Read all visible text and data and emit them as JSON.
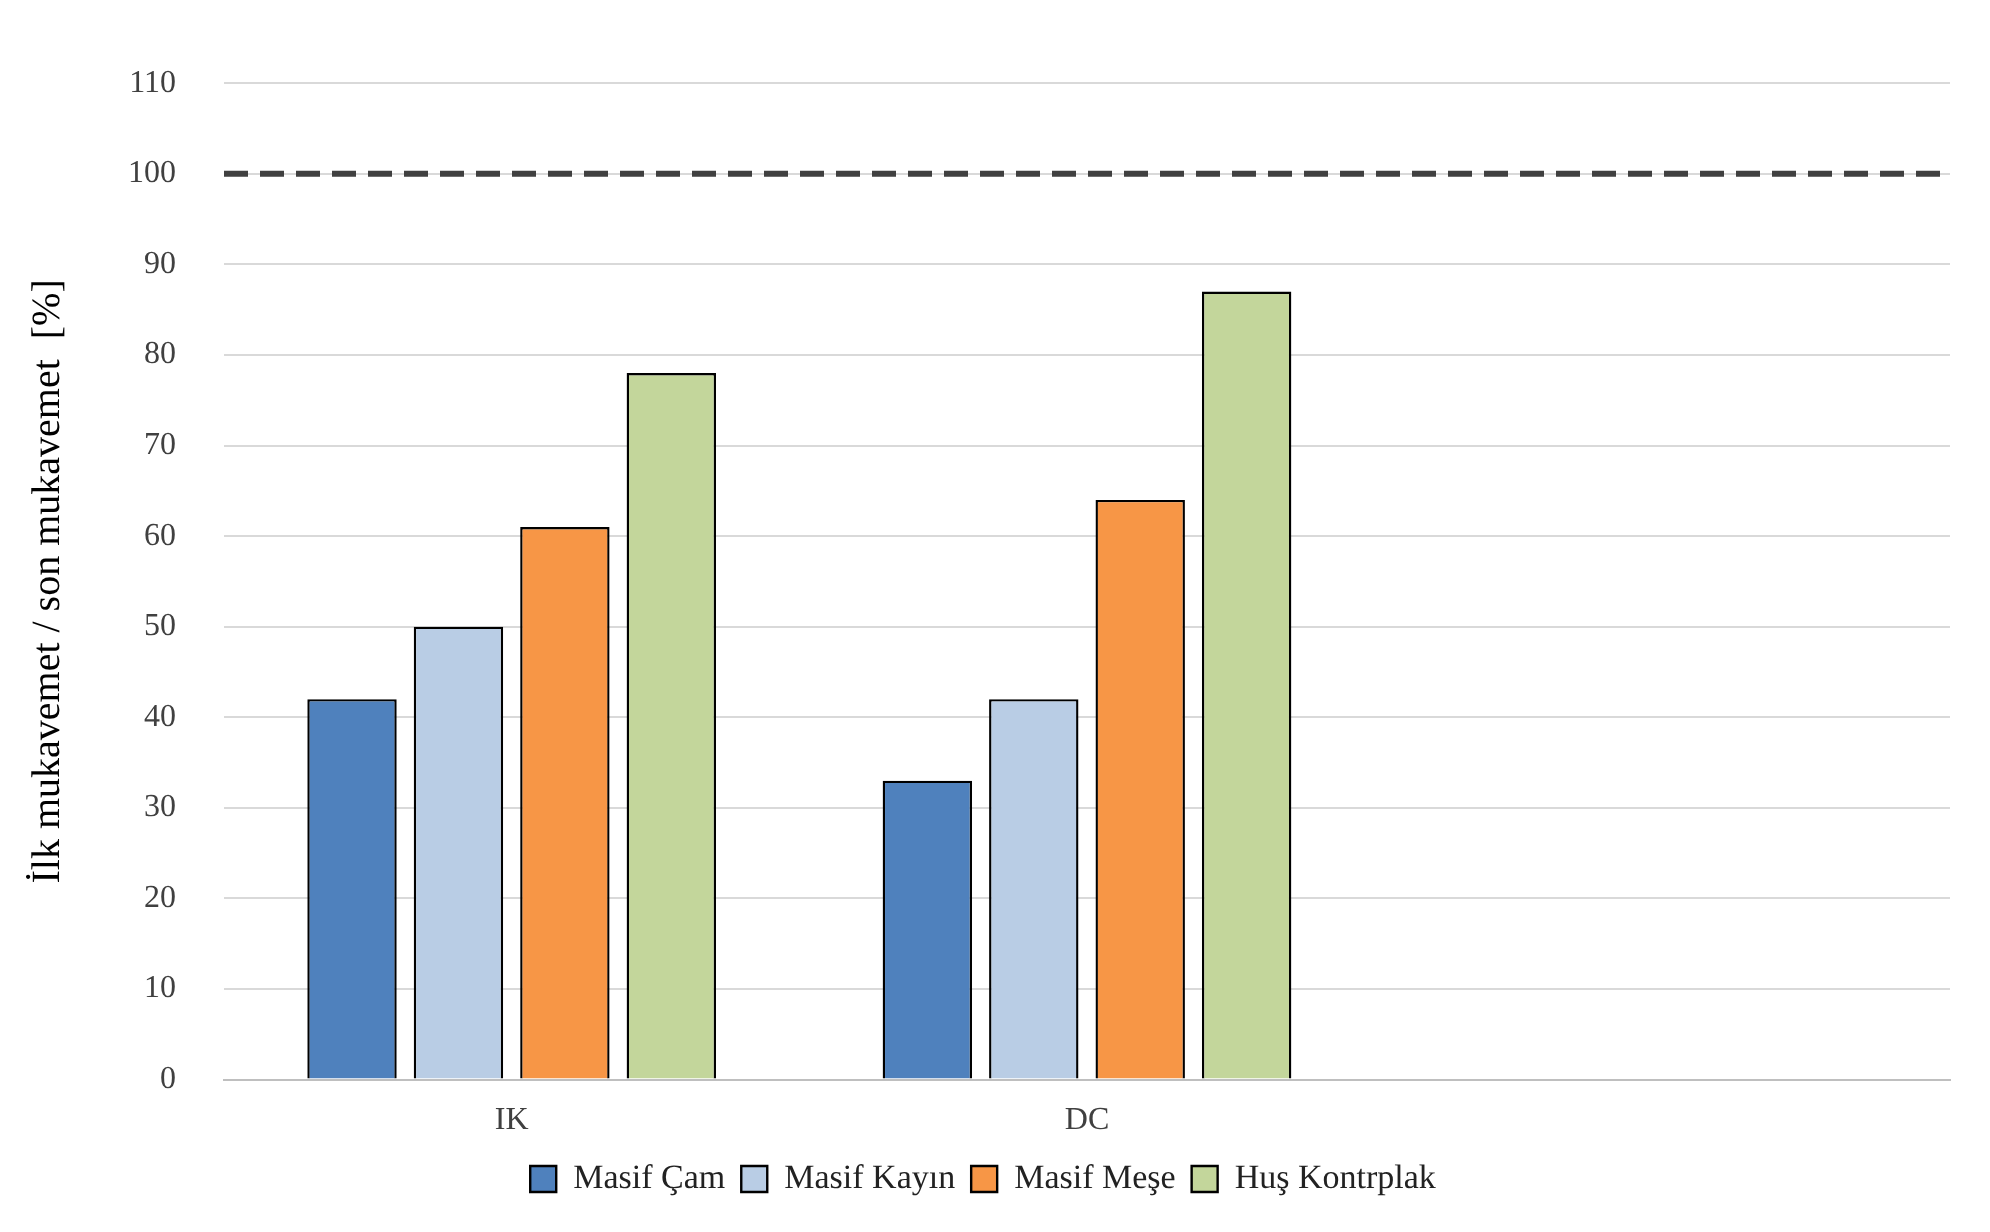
{
  "chart_data": {
    "type": "bar",
    "ylabel": "İlk mukavemet / son mukavemet  [%]",
    "categories": [
      "IK",
      "DC",
      null
    ],
    "series": [
      {
        "name": "Masif Çam",
        "color": "#4f81bd",
        "values": [
          42,
          33,
          null
        ]
      },
      {
        "name": "Masif Kayın",
        "color": "#b9cde5",
        "values": [
          50,
          42,
          null
        ]
      },
      {
        "name": "Masif Meşe",
        "color": "#f79646",
        "values": [
          61,
          64,
          null
        ]
      },
      {
        "name": "Huş Kontrplak",
        "color": "#c3d69b",
        "values": [
          78,
          87,
          null
        ]
      }
    ],
    "ylim": [
      0,
      110
    ],
    "yticks": [
      0,
      10,
      20,
      30,
      40,
      50,
      60,
      70,
      80,
      90,
      100,
      110
    ],
    "ref_lines": [
      {
        "axis": "y",
        "value": 100,
        "color": "#404040",
        "line_style": "dashed"
      }
    ],
    "grid": "y",
    "legend": "bottom"
  }
}
